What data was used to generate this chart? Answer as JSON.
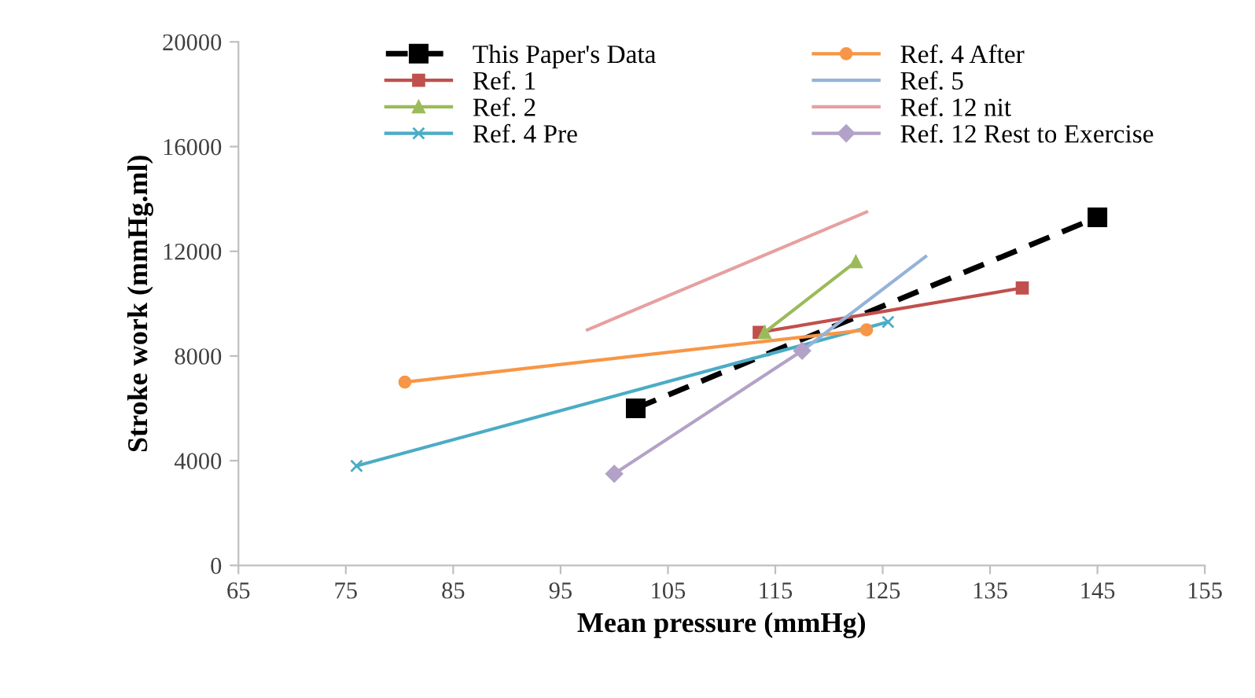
{
  "chart_data": {
    "type": "line",
    "xlabel": "Mean pressure (mmHg)",
    "ylabel": "Stroke work (mmHg.ml)",
    "xlim": [
      65,
      155
    ],
    "xticks": [
      65,
      75,
      85,
      95,
      105,
      115,
      125,
      135,
      145,
      155
    ],
    "ylim": [
      0,
      20000
    ],
    "yticks": [
      0,
      4000,
      8000,
      12000,
      16000,
      20000
    ],
    "grid": false,
    "legend": "top",
    "series": [
      {
        "name": "This Paper's Data",
        "color": "#000000",
        "x": [
          102,
          145
        ],
        "values": [
          6000,
          13300
        ],
        "marker": "square",
        "line_style": "dashed"
      },
      {
        "name": "Ref. 1",
        "color": "#c0504d",
        "x": [
          113.5,
          138
        ],
        "values": [
          8900,
          10600
        ],
        "marker": "square",
        "line_style": "solid"
      },
      {
        "name": "Ref. 2",
        "color": "#9bbb59",
        "x": [
          114,
          122.5
        ],
        "values": [
          8900,
          11600
        ],
        "marker": "triangle",
        "line_style": "solid"
      },
      {
        "name": "Ref. 4 Pre",
        "color": "#4bacc6",
        "x": [
          76,
          125.5
        ],
        "values": [
          3800,
          9300
        ],
        "marker": "cross",
        "line_style": "solid"
      },
      {
        "name": "Ref. 4 After",
        "color": "#f79646",
        "x": [
          80.5,
          123.5
        ],
        "values": [
          7000,
          9000
        ],
        "marker": "circle",
        "line_style": "solid"
      },
      {
        "name": "Ref. 5",
        "color": "#95b3d7",
        "x": [
          117.5,
          129
        ],
        "values": [
          8200,
          11800
        ],
        "marker": "none",
        "line_style": "solid"
      },
      {
        "name": "Ref. 12 nit",
        "color": "#e6a0a0",
        "x": [
          97.5,
          123.5
        ],
        "values": [
          9000,
          13500
        ],
        "marker": "none",
        "line_style": "solid"
      },
      {
        "name": "Ref. 12 Rest to Exercise",
        "color": "#b3a2c7",
        "x": [
          100,
          117.5
        ],
        "values": [
          3500,
          8200
        ],
        "marker": "diamond",
        "line_style": "solid"
      }
    ]
  }
}
